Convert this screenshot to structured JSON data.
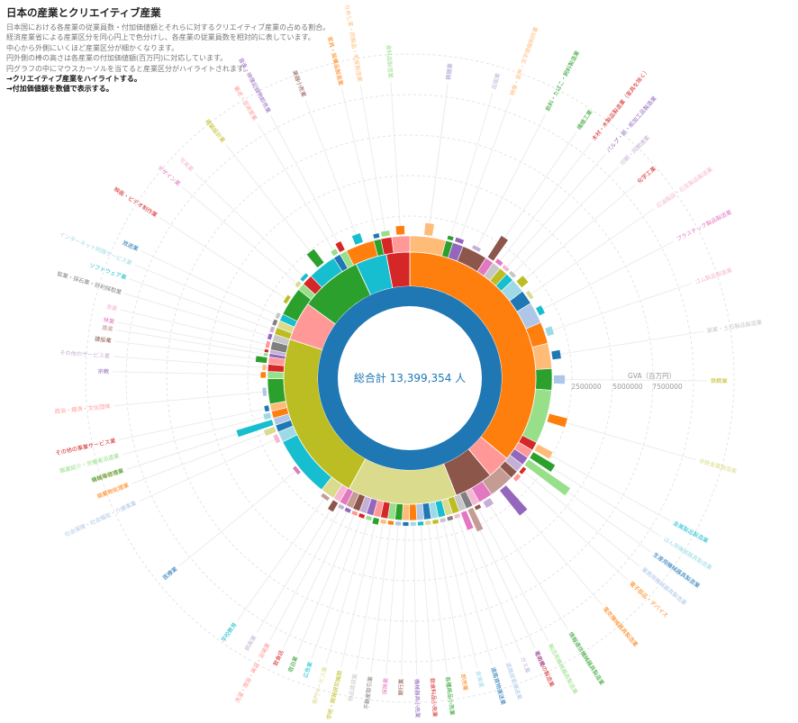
{
  "header": {
    "title": "日本の産業とクリエイティブ産業",
    "lines": [
      "日本国における各産業の従業員数・付加価値額とそれらに対するクリエイティブ産業の占める割合。",
      "経済産業省による産業区分を同心円上で色分けし、各産業の従業員数を相対的に表しています。",
      "中心から外側にいくほど産業区分が細かくなります。",
      "円外側の棒の高さは各産業の付加価値額(百万円)に対応しています。",
      "円グラフの中にマウスカーソルを当てると産業区分がハイライトされます。"
    ],
    "link_creative": "→クリエイティブ産業をハイライトする。",
    "link_values": "→付加価値額を数値で表示する。"
  },
  "center_label": "総合計 13,399,354 人",
  "axis": {
    "title": "GVA（百万円）",
    "ticks": [
      "2500000",
      "5000000",
      "7500000"
    ]
  },
  "colors": {
    "center": "#1f77b4",
    "palette": [
      "#ff7f0e",
      "#ffbb78",
      "#2ca02c",
      "#98df8a",
      "#d62728",
      "#ff9896",
      "#9467bd",
      "#c5b0d5",
      "#8c564b",
      "#c49c94",
      "#e377c2",
      "#f7b6d2",
      "#7f7f7f",
      "#c7c7c7",
      "#bcbd22",
      "#dbdb8d",
      "#17becf",
      "#9edae5",
      "#1f77b4",
      "#aec7e8"
    ]
  },
  "chart_data": {
    "type": "sunburst",
    "title": "日本の産業とクリエイティブ産業",
    "total_label": "総合計 13,399,354 人",
    "rings": [
      {
        "level": 1,
        "segments": [
          {
            "value": 0.36,
            "color": "#ff7f0e"
          },
          {
            "value": 0.03,
            "color": "#ff9896"
          },
          {
            "value": 0.05,
            "color": "#8c564b"
          },
          {
            "value": 0.14,
            "color": "#dbdb8d"
          },
          {
            "value": 0.22,
            "color": "#bcbd22"
          },
          {
            "value": 0.05,
            "color": "#ff9896"
          },
          {
            "value": 0.08,
            "color": "#2ca02c"
          },
          {
            "value": 0.04,
            "color": "#17becf"
          },
          {
            "value": 0.03,
            "color": "#d62728"
          }
        ]
      },
      {
        "level": 2,
        "segments": [
          {
            "value": 0.05,
            "color": "#ffbb78"
          },
          {
            "value": 0.01,
            "color": "#2ca02c"
          },
          {
            "value": 0.015,
            "color": "#9467bd"
          },
          {
            "value": 0.035,
            "color": "#8c564b"
          },
          {
            "value": 0.012,
            "color": "#e377c2"
          },
          {
            "value": 0.012,
            "color": "#c7c7c7"
          },
          {
            "value": 0.012,
            "color": "#bcbd22"
          },
          {
            "value": 0.012,
            "color": "#17becf"
          },
          {
            "value": 0.02,
            "color": "#9edae5"
          },
          {
            "value": 0.02,
            "color": "#1f77b4"
          },
          {
            "value": 0.03,
            "color": "#aec7e8"
          },
          {
            "value": 0.03,
            "color": "#ff7f0e"
          },
          {
            "value": 0.035,
            "color": "#ffbb78"
          },
          {
            "value": 0.03,
            "color": "#2ca02c"
          },
          {
            "value": 0.075,
            "color": "#98df8a"
          },
          {
            "value": 0.012,
            "color": "#d62728"
          },
          {
            "value": 0.012,
            "color": "#ff9896"
          },
          {
            "value": 0.012,
            "color": "#9467bd"
          },
          {
            "value": 0.012,
            "color": "#c5b0d5"
          },
          {
            "value": 0.012,
            "color": "#8c564b"
          },
          {
            "value": 0.035,
            "color": "#c49c94"
          },
          {
            "value": 0.02,
            "color": "#e377c2"
          },
          {
            "value": 0.01,
            "color": "#f7b6d2"
          },
          {
            "value": 0.01,
            "color": "#7f7f7f"
          },
          {
            "value": 0.01,
            "color": "#c7c7c7"
          },
          {
            "value": 0.01,
            "color": "#bcbd22"
          },
          {
            "value": 0.01,
            "color": "#dbdb8d"
          },
          {
            "value": 0.01,
            "color": "#17becf"
          },
          {
            "value": 0.01,
            "color": "#9edae5"
          },
          {
            "value": 0.01,
            "color": "#1f77b4"
          },
          {
            "value": 0.01,
            "color": "#aec7e8"
          },
          {
            "value": 0.01,
            "color": "#ff7f0e"
          },
          {
            "value": 0.01,
            "color": "#ffbb78"
          },
          {
            "value": 0.01,
            "color": "#2ca02c"
          },
          {
            "value": 0.01,
            "color": "#98df8a"
          },
          {
            "value": 0.01,
            "color": "#d62728"
          },
          {
            "value": 0.01,
            "color": "#ff9896"
          },
          {
            "value": 0.01,
            "color": "#9467bd"
          },
          {
            "value": 0.01,
            "color": "#c5b0d5"
          },
          {
            "value": 0.01,
            "color": "#8c564b"
          },
          {
            "value": 0.01,
            "color": "#c49c94"
          },
          {
            "value": 0.01,
            "color": "#e377c2"
          },
          {
            "value": 0.01,
            "color": "#f7b6d2"
          },
          {
            "value": 0.02,
            "color": "#dbdb8d"
          },
          {
            "value": 0.085,
            "color": "#17becf"
          },
          {
            "value": 0.015,
            "color": "#9edae5"
          },
          {
            "value": 0.01,
            "color": "#1f77b4"
          },
          {
            "value": 0.01,
            "color": "#aec7e8"
          },
          {
            "value": 0.01,
            "color": "#ff7f0e"
          },
          {
            "value": 0.01,
            "color": "#ffbb78"
          },
          {
            "value": 0.035,
            "color": "#2ca02c"
          },
          {
            "value": 0.01,
            "color": "#98df8a"
          },
          {
            "value": 0.01,
            "color": "#d62728"
          },
          {
            "value": 0.01,
            "color": "#ff9896"
          },
          {
            "value": 0.005,
            "color": "#9467bd"
          },
          {
            "value": 0.005,
            "color": "#c5b0d5"
          },
          {
            "value": 0.012,
            "color": "#7f7f7f"
          },
          {
            "value": 0.01,
            "color": "#c7c7c7"
          },
          {
            "value": 0.01,
            "color": "#bcbd22"
          },
          {
            "value": 0.01,
            "color": "#dbdb8d"
          },
          {
            "value": 0.01,
            "color": "#17becf"
          },
          {
            "value": 0.04,
            "color": "#2ca02c"
          },
          {
            "value": 0.01,
            "color": "#98df8a"
          },
          {
            "value": 0.015,
            "color": "#d62728"
          },
          {
            "value": 0.04,
            "color": "#17becf"
          },
          {
            "value": 0.01,
            "color": "#1f77b4"
          },
          {
            "value": 0.01,
            "color": "#98df8a"
          },
          {
            "value": 0.04,
            "color": "#ff7f0e"
          },
          {
            "value": 0.01,
            "color": "#2ca02c"
          },
          {
            "value": 0.015,
            "color": "#d62728"
          },
          {
            "value": 0.025,
            "color": "#ff9896"
          }
        ]
      }
    ],
    "gva_bars": [
      {
        "value": 1400000,
        "color": "#ffbb78"
      },
      {
        "value": 400000,
        "color": "#2ca02c"
      },
      {
        "value": 500000,
        "color": "#9467bd"
      },
      {
        "value": 400000,
        "color": "#c5b0d5"
      },
      {
        "value": 3000000,
        "color": "#8c564b"
      },
      {
        "value": 500000,
        "color": "#e377c2"
      },
      {
        "value": 300000,
        "color": "#f7b6d2"
      },
      {
        "value": 300000,
        "color": "#c7c7c7"
      },
      {
        "value": 1000000,
        "color": "#bcbd22"
      },
      {
        "value": 400000,
        "color": "#dbdb8d"
      },
      {
        "value": 700000,
        "color": "#17becf"
      },
      {
        "value": 800000,
        "color": "#9edae5"
      },
      {
        "value": 1000000,
        "color": "#1f77b4"
      },
      {
        "value": 1300000,
        "color": "#aec7e8"
      },
      {
        "value": 2200000,
        "color": "#ff7f0e"
      },
      {
        "value": 2000000,
        "color": "#ffbb78"
      },
      {
        "value": 3000000,
        "color": "#2ca02c"
      },
      {
        "value": 6000000,
        "color": "#98df8a"
      },
      {
        "value": 400000,
        "color": "#d62728"
      },
      {
        "value": 500000,
        "color": "#ff9896"
      },
      {
        "value": 3800000,
        "color": "#9467bd"
      },
      {
        "value": 800000,
        "color": "#c5b0d5"
      },
      {
        "value": 400000,
        "color": "#8c564b"
      },
      {
        "value": 2800000,
        "color": "#c49c94"
      },
      {
        "value": 2200000,
        "color": "#e377c2"
      },
      {
        "value": 400000,
        "color": "#f7b6d2"
      },
      {
        "value": 400000,
        "color": "#7f7f7f"
      },
      {
        "value": 300000,
        "color": "#c7c7c7"
      },
      {
        "value": 300000,
        "color": "#bcbd22"
      },
      {
        "value": 400000,
        "color": "#dbdb8d"
      },
      {
        "value": 400000,
        "color": "#17becf"
      },
      {
        "value": 300000,
        "color": "#9edae5"
      },
      {
        "value": 300000,
        "color": "#1f77b4"
      },
      {
        "value": 300000,
        "color": "#aec7e8"
      },
      {
        "value": 300000,
        "color": "#ff7f0e"
      },
      {
        "value": 300000,
        "color": "#ffbb78"
      },
      {
        "value": 700000,
        "color": "#2ca02c"
      },
      {
        "value": 300000,
        "color": "#98df8a"
      },
      {
        "value": 400000,
        "color": "#d62728"
      },
      {
        "value": 300000,
        "color": "#ff9896"
      },
      {
        "value": 400000,
        "color": "#9467bd"
      },
      {
        "value": 400000,
        "color": "#c5b0d5"
      },
      {
        "value": 1200000,
        "color": "#8c564b"
      },
      {
        "value": 400000,
        "color": "#c49c94"
      },
      {
        "value": 400000,
        "color": "#e377c2"
      },
      {
        "value": 500000,
        "color": "#f7b6d2"
      },
      {
        "value": 1300000,
        "color": "#dbdb8d"
      },
      {
        "value": 4400000,
        "color": "#17becf"
      },
      {
        "value": 800000,
        "color": "#9edae5"
      },
      {
        "value": 500000,
        "color": "#1f77b4"
      },
      {
        "value": 400000,
        "color": "#aec7e8"
      },
      {
        "value": 600000,
        "color": "#ff7f0e"
      },
      {
        "value": 400000,
        "color": "#ffbb78"
      },
      {
        "value": 1300000,
        "color": "#2ca02c"
      },
      {
        "value": 300000,
        "color": "#98df8a"
      },
      {
        "value": 300000,
        "color": "#d62728"
      },
      {
        "value": 300000,
        "color": "#ff9896"
      },
      {
        "value": 300000,
        "color": "#9467bd"
      },
      {
        "value": 300000,
        "color": "#c5b0d5"
      },
      {
        "value": 300000,
        "color": "#7f7f7f"
      },
      {
        "value": 300000,
        "color": "#c7c7c7"
      },
      {
        "value": 300000,
        "color": "#bcbd22"
      },
      {
        "value": 300000,
        "color": "#dbdb8d"
      },
      {
        "value": 400000,
        "color": "#17becf"
      },
      {
        "value": 2000000,
        "color": "#2ca02c"
      },
      {
        "value": 600000,
        "color": "#98df8a"
      },
      {
        "value": 1100000,
        "color": "#d62728"
      },
      {
        "value": 1100000,
        "color": "#17becf"
      },
      {
        "value": 500000,
        "color": "#1f77b4"
      },
      {
        "value": 600000,
        "color": "#98df8a"
      },
      {
        "value": 1000000,
        "color": "#ff7f0e"
      },
      {
        "value": 1100000,
        "color": "#2ca02c"
      },
      {
        "value": 1800000,
        "color": "#d62728"
      },
      {
        "value": 3500000,
        "color": "#ff9896"
      }
    ],
    "labels": [
      {
        "text": "通信業",
        "color": "#aec7e8"
      },
      {
        "text": "新聞業",
        "color": "#c5b0d5"
      },
      {
        "text": "出版業",
        "color": "#c5b0d5"
      },
      {
        "text": "映像・音声・文字情報制作業",
        "color": "#ffbb78"
      },
      {
        "text": "飲料・たばこ・飼料製造業",
        "color": "#2ca02c"
      },
      {
        "text": "繊維工業",
        "color": "#2ca02c"
      },
      {
        "text": "木材・木製品製造業（家具を除く）",
        "color": "#d62728"
      },
      {
        "text": "パルプ・紙・紙加工品製造業",
        "color": "#9467bd"
      },
      {
        "text": "印刷・同関連業",
        "color": "#c5b0d5"
      },
      {
        "text": "化学工業",
        "color": "#d62728"
      },
      {
        "text": "石油製品・石炭製品製造業",
        "color": "#f7b6d2"
      },
      {
        "text": "プラスチック製品製造業",
        "color": "#e377c2"
      },
      {
        "text": "ゴム製品製造業",
        "color": "#f7b6d2"
      },
      {
        "text": "窯業・土石製品製造業",
        "color": "#c7c7c7"
      },
      {
        "text": "鉄鋼業",
        "color": "#bcbd22"
      },
      {
        "text": "非鉄金属製造業",
        "color": "#dbdb8d"
      },
      {
        "text": "金属製品製造業",
        "color": "#17becf"
      },
      {
        "text": "はん用機械器具製造業",
        "color": "#9edae5"
      },
      {
        "text": "生産用機械器具製造業",
        "color": "#1f77b4"
      },
      {
        "text": "業務用機械器具製造業",
        "color": "#aec7e8"
      },
      {
        "text": "電子部品・デバイス",
        "color": "#ff7f0e"
      },
      {
        "text": "電気機械器具製造業",
        "color": "#ff7f0e"
      },
      {
        "text": "情報通信機械器具製造業",
        "color": "#2ca02c"
      },
      {
        "text": "輸送用機械器具製造業",
        "color": "#98df8a"
      },
      {
        "text": "その他の製造業",
        "color": "#d62728"
      },
      {
        "text": "電気業",
        "color": "#9467bd"
      },
      {
        "text": "ガス業",
        "color": "#c5b0d5"
      },
      {
        "text": "道路旅客運送業",
        "color": "#aec7e8"
      },
      {
        "text": "道路貨物運送業",
        "color": "#1f77b4"
      },
      {
        "text": "倉庫業",
        "color": "#9edae5"
      },
      {
        "text": "卸売業",
        "color": "#ff7f0e"
      },
      {
        "text": "各種商品小売業",
        "color": "#2ca02c"
      },
      {
        "text": "飲食料品小売業",
        "color": "#d62728"
      },
      {
        "text": "機械器具小売業",
        "color": "#9467bd"
      },
      {
        "text": "銀行業",
        "color": "#8c564b"
      },
      {
        "text": "保険業",
        "color": "#e377c2"
      },
      {
        "text": "不動産取引業",
        "color": "#7f7f7f"
      },
      {
        "text": "物品賃貸業",
        "color": "#c7c7c7"
      },
      {
        "text": "学術・開発研究機関",
        "color": "#bcbd22"
      },
      {
        "text": "専門サービス業",
        "color": "#dbdb8d"
      },
      {
        "text": "広告業",
        "color": "#17becf"
      },
      {
        "text": "宿泊業",
        "color": "#2ca02c"
      },
      {
        "text": "飲食店",
        "color": "#d62728"
      },
      {
        "text": "洗濯・理容・美容・浴場業",
        "color": "#ff9896"
      },
      {
        "text": "娯楽業",
        "color": "#c5b0d5"
      },
      {
        "text": "学校教育",
        "color": "#17becf"
      },
      {
        "text": "医療業",
        "color": "#1f77b4"
      },
      {
        "text": "社会保険・社会福祉・介護事業",
        "color": "#aec7e8"
      },
      {
        "text": "廃棄物処理業",
        "color": "#ff7f0e"
      },
      {
        "text": "自動車整備業",
        "color": "#ffbb78"
      },
      {
        "text": "機械等修理業",
        "color": "#2ca02c"
      },
      {
        "text": "職業紹介・労働者派遣業",
        "color": "#98df8a"
      },
      {
        "text": "その他の事業サービス業",
        "color": "#d62728"
      },
      {
        "text": "政治・経済・文化団体",
        "color": "#ff9896"
      },
      {
        "text": "宗教",
        "color": "#9467bd"
      },
      {
        "text": "その他のサービス業",
        "color": "#c5b0d5"
      },
      {
        "text": "建設業",
        "color": "#8c564b"
      },
      {
        "text": "農業",
        "color": "#c49c94"
      },
      {
        "text": "林業",
        "color": "#e377c2"
      },
      {
        "text": "漁業",
        "color": "#f7b6d2"
      },
      {
        "text": "鉱業・採石業・砂利採取業",
        "color": "#7f7f7f"
      },
      {
        "text": "ソフトウェア業",
        "color": "#17becf"
      },
      {
        "text": "インターネット附随サービス業",
        "color": "#9edae5"
      },
      {
        "text": "放送業",
        "color": "#1f77b4"
      },
      {
        "text": "映画・ビデオ制作業",
        "color": "#d62728"
      },
      {
        "text": "デザイン業",
        "color": "#e377c2"
      },
      {
        "text": "写真業",
        "color": "#f7b6d2"
      },
      {
        "text": "建築設計業",
        "color": "#bcbd22"
      },
      {
        "text": "著述・芸術家業",
        "color": "#ff9896"
      },
      {
        "text": "音楽・映像記録物卸売業",
        "color": "#9467bd"
      },
      {
        "text": "楽器小売業",
        "color": "#8c564b"
      },
      {
        "text": "家具・装備品製造業",
        "color": "#ff7f0e"
      },
      {
        "text": "なめし革・同製品・毛皮製造業",
        "color": "#ffbb78"
      },
      {
        "text": "食料品製造業",
        "color": "#98df8a"
      }
    ]
  }
}
